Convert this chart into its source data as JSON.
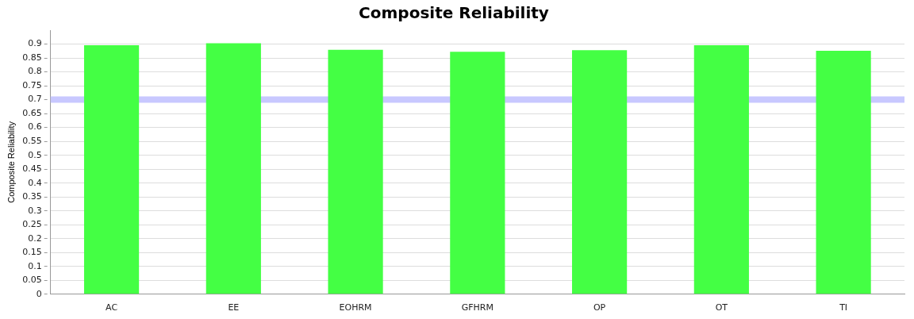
{
  "chart_data": {
    "type": "bar",
    "title": "Composite Reliability",
    "ylabel": "Composite Reliability",
    "categories": [
      "AC",
      "EE",
      "EOHRM",
      "GFHRM",
      "OP",
      "OT",
      "TI"
    ],
    "values": [
      0.896,
      0.903,
      0.879,
      0.872,
      0.878,
      0.896,
      0.876
    ],
    "color": "#44ff44",
    "ylim": [
      0,
      0.95
    ],
    "yticks": [
      0,
      0.05,
      0.1,
      0.15,
      0.2,
      0.25,
      0.3,
      0.35,
      0.4,
      0.45,
      0.5,
      0.55,
      0.6,
      0.65,
      0.7,
      0.75,
      0.8,
      0.85,
      0.9
    ],
    "ref_lines": [
      {
        "axis": "y",
        "value": 0.7,
        "color": "#c8c8ff"
      }
    ],
    "grid": "y",
    "legend": false
  }
}
